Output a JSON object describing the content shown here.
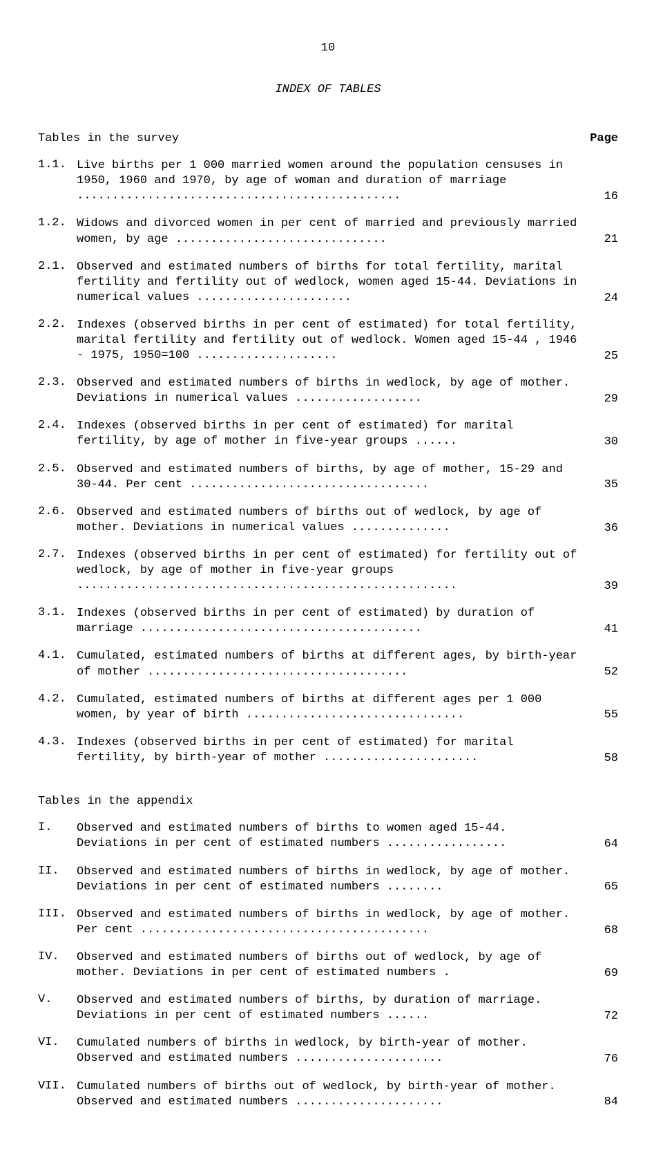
{
  "page_number": "10",
  "main_title": "INDEX OF TABLES",
  "page_label": "Page",
  "section1": {
    "title": "Tables in the survey",
    "entries": [
      {
        "num": "1.1.",
        "text": "Live births per 1 000 married women around the population censuses in 1950, 1960 and 1970, by age of woman and duration of marriage ..............................................",
        "page": "16"
      },
      {
        "num": "1.2.",
        "text": "Widows and divorced women in per cent of married and previously married women, by age ..............................",
        "page": "21"
      },
      {
        "num": "2.1.",
        "text": "Observed and estimated numbers of births for total fertility, marital fertility and fertility out of wedlock, women aged 15-44.  Deviations in numerical values ......................",
        "page": "24"
      },
      {
        "num": "2.2.",
        "text": "Indexes (observed births in per cent of estimated) for total fertility, marital fertility and fertility out of wedlock. Women aged 15-44 , 1946 - 1975, 1950=100 ....................",
        "page": "25"
      },
      {
        "num": "2.3.",
        "text": "Observed and estimated numbers of births in wedlock, by age of mother.  Deviations in numerical values ..................",
        "page": "29"
      },
      {
        "num": "2.4.",
        "text": "Indexes (observed births in per cent of estimated) for marital fertility, by age of mother in five-year groups ......",
        "page": "30"
      },
      {
        "num": "2.5.",
        "text": "Observed and estimated numbers of births, by age of mother, 15-29 and 30-44.  Per cent ..................................",
        "page": "35"
      },
      {
        "num": "2.6.",
        "text": "Observed and estimated numbers of births out of wedlock, by age of mother.  Deviations in numerical values ..............",
        "page": "36"
      },
      {
        "num": "2.7.",
        "text": "Indexes (observed births in per cent of estimated) for fertility out of wedlock, by age of mother in five-year groups ......................................................",
        "page": "39"
      },
      {
        "num": "3.1.",
        "text": "Indexes (observed births in per cent of estimated) by duration of marriage ........................................",
        "page": "41"
      },
      {
        "num": "4.1.",
        "text": "Cumulated, estimated numbers of births at different ages, by birth-year of mother .....................................",
        "page": "52"
      },
      {
        "num": "4.2.",
        "text": "Cumulated, estimated numbers of births at different ages per 1 000 women, by year of birth ...............................",
        "page": "55"
      },
      {
        "num": "4.3.",
        "text": "Indexes (observed births in per cent of estimated) for marital fertility, by birth-year of mother ......................",
        "page": "58"
      }
    ]
  },
  "section2": {
    "title": "Tables in the appendix",
    "entries": [
      {
        "num": "I.",
        "text": "Observed and estimated numbers of births to women aged 15-44. Deviations in per cent of estimated numbers .................",
        "page": "64"
      },
      {
        "num": "II.",
        "text": "Observed and estimated numbers of births in wedlock, by age of mother.  Deviations in per cent of estimated numbers ........",
        "page": "65"
      },
      {
        "num": "III.",
        "text": "Observed and estimated numbers of births in wedlock, by age of mother.  Per cent .........................................",
        "page": "68"
      },
      {
        "num": "IV.",
        "text": "Observed and estimated numbers of births out of wedlock, by age of mother.  Deviations in per cent of estimated numbers .",
        "page": "69"
      },
      {
        "num": "V.",
        "text": "Observed and estimated numbers of births, by duration of marriage.  Deviations in per cent of estimated numbers ......",
        "page": "72"
      },
      {
        "num": "VI.",
        "text": "Cumulated numbers of births in wedlock, by birth-year of mother.  Observed and estimated numbers .....................",
        "page": "76"
      },
      {
        "num": "VII.",
        "text": "Cumulated numbers of births out of wedlock, by birth-year of mother.  Observed and estimated numbers .....................",
        "page": "84"
      }
    ]
  }
}
